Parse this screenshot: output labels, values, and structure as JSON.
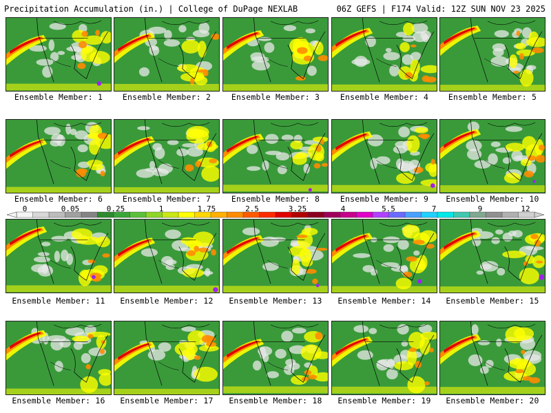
{
  "header": {
    "title": "Precipitation Accumulation (in.) | College of DuPage NEXLAB",
    "run_info": "06Z GEFS | F174 Valid: 12Z SUN NOV 23 2025"
  },
  "members": [
    {
      "label": "Ensemble Member: 1",
      "number": 1
    },
    {
      "label": "Ensemble Member: 2",
      "number": 2
    },
    {
      "label": "Ensemble Member: 3",
      "number": 3
    },
    {
      "label": "Ensemble Member: 4",
      "number": 4
    },
    {
      "label": "Ensemble Member: 5",
      "number": 5
    },
    {
      "label": "Ensemble Member: 6",
      "number": 6
    },
    {
      "label": "Ensemble Member: 7",
      "number": 7
    },
    {
      "label": "Ensemble Member: 8",
      "number": 8
    },
    {
      "label": "Ensemble Member: 9",
      "number": 9
    },
    {
      "label": "Ensemble Member: 10",
      "number": 10
    },
    {
      "label": "Ensemble Member: 11",
      "number": 11
    },
    {
      "label": "Ensemble Member: 12",
      "number": 12
    },
    {
      "label": "Ensemble Member: 13",
      "number": 13
    },
    {
      "label": "Ensemble Member: 14",
      "number": 14
    },
    {
      "label": "Ensemble Member: 15",
      "number": 15
    },
    {
      "label": "Ensemble Member: 16",
      "number": 16
    },
    {
      "label": "Ensemble Member: 17",
      "number": 17
    },
    {
      "label": "Ensemble Member: 18",
      "number": 18
    },
    {
      "label": "Ensemble Member: 19",
      "number": 19
    },
    {
      "label": "Ensemble Member: 20",
      "number": 20
    }
  ],
  "colorbar": {
    "labels": [
      "0",
      "0.05",
      "0.25",
      "1",
      "1.75",
      "2.5",
      "3.25",
      "4",
      "5.5",
      "7",
      "9",
      "12"
    ],
    "colors": [
      "#f4f4f4",
      "#d8d8d8",
      "#bcbcbc",
      "#a0a0a0",
      "#848484",
      "#2e8b2e",
      "#3aa63a",
      "#5cc03a",
      "#8ed626",
      "#c8e816",
      "#ffff00",
      "#ffd700",
      "#ffb000",
      "#ff8c00",
      "#ff5a00",
      "#ff2a00",
      "#e00000",
      "#b00000",
      "#8b0020",
      "#a0005a",
      "#c8008c",
      "#e000c8",
      "#b040ff",
      "#6a6aff",
      "#4aa0ff",
      "#20d0ff",
      "#00e8e8",
      "#40c8b0",
      "#80a890",
      "#909090",
      "#b0b0b0",
      "#d0d0d0"
    ]
  },
  "map_colors": {
    "ocean_base": "#3a9a3a",
    "dry": "#e8e8e8",
    "light": "#ffff00",
    "moderate": "#ff8c00",
    "heavy": "#e00000",
    "extreme": "#a020f0"
  }
}
